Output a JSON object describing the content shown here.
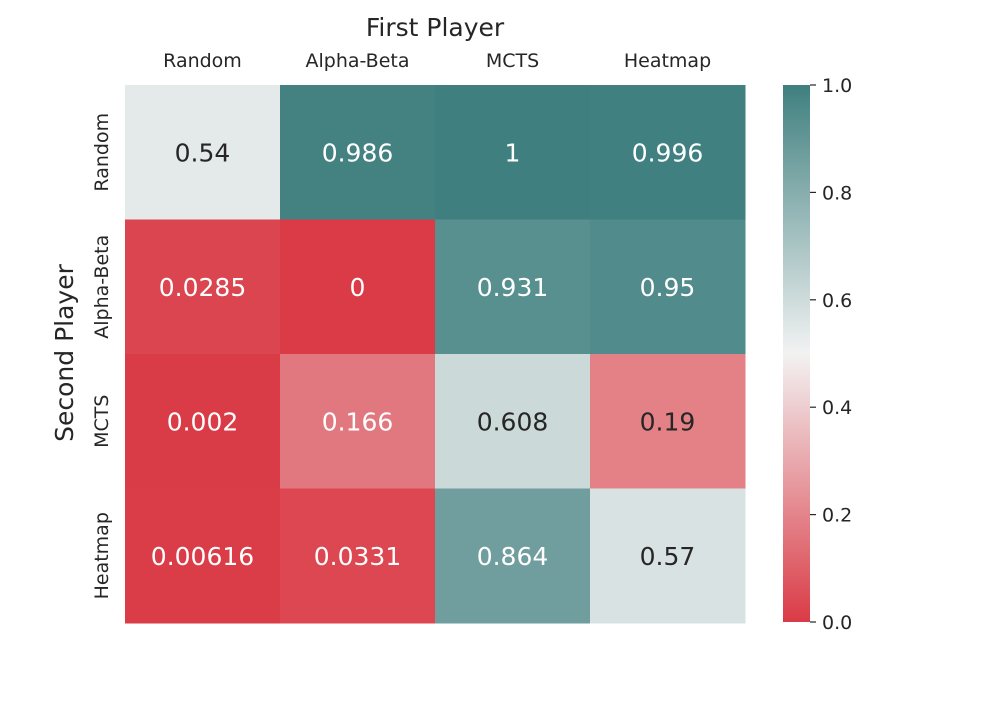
{
  "chart_data": {
    "type": "heatmap",
    "title": "First Player",
    "xlabel": "First Player",
    "ylabel": "Second Player",
    "x_categories": [
      "Random",
      "Alpha-Beta",
      "MCTS",
      "Heatmap"
    ],
    "y_categories": [
      "Random",
      "Alpha-Beta",
      "MCTS",
      "Heatmap"
    ],
    "values": [
      [
        0.54,
        0.986,
        1,
        0.996
      ],
      [
        0.0285,
        0,
        0.931,
        0.95
      ],
      [
        0.002,
        0.166,
        0.608,
        0.19
      ],
      [
        0.00616,
        0.0331,
        0.864,
        0.57
      ]
    ],
    "cell_labels": [
      [
        "0.54",
        "0.986",
        "1",
        "0.996"
      ],
      [
        "0.0285",
        "0",
        "0.931",
        "0.95"
      ],
      [
        "0.002",
        "0.166",
        "0.608",
        "0.19"
      ],
      [
        "0.00616",
        "0.0331",
        "0.864",
        "0.57"
      ]
    ],
    "vmin": 0,
    "vmax": 1,
    "colorbar_ticks": [
      "0.0",
      "0.2",
      "0.4",
      "0.6",
      "0.8",
      "1.0"
    ],
    "colormap": {
      "low": "#da3b46",
      "mid": "#f2f2f2",
      "high": "#3f7f7f"
    },
    "x_axis_position": "top",
    "colorbar_position": "right",
    "grid": false
  }
}
